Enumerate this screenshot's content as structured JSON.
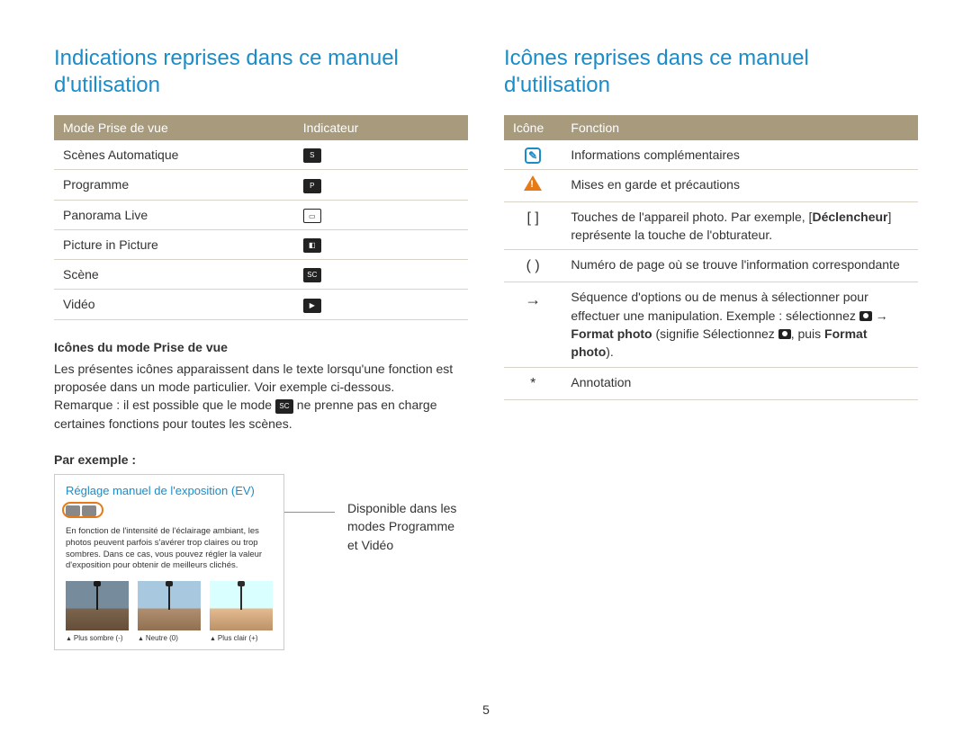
{
  "page_number": "5",
  "left": {
    "title": "Indications reprises dans ce manuel d'utilisation",
    "table_headers": [
      "Mode Prise de vue",
      "Indicateur"
    ],
    "rows": [
      {
        "mode": "Scènes Automatique",
        "icon": "SMART"
      },
      {
        "mode": "Programme",
        "icon": "P"
      },
      {
        "mode": "Panorama Live",
        "icon": "PANO"
      },
      {
        "mode": "Picture in Picture",
        "icon": "PIP"
      },
      {
        "mode": "Scène",
        "icon": "SCENE"
      },
      {
        "mode": "Vidéo",
        "icon": "VIDEO"
      }
    ],
    "subheading": "Icônes du mode Prise de vue",
    "para1": "Les présentes icônes apparaissent dans le texte lorsqu'une fonction est proposée dans un mode particulier. Voir exemple ci-dessous.",
    "para2_a": "Remarque : il est possible que le mode ",
    "para2_b": " ne prenne pas en charge certaines fonctions pour toutes les scènes.",
    "example_label": "Par exemple :",
    "example_title": "Réglage manuel de l'exposition (EV)",
    "example_desc": "En fonction de l'intensité de l'éclairage ambiant, les photos peuvent parfois s'avérer trop claires ou trop sombres. Dans ce cas, vous pouvez régler la valeur d'exposition pour obtenir de meilleurs clichés.",
    "thumbs": [
      "Plus sombre (-)",
      "Neutre (0)",
      "Plus clair (+)"
    ],
    "callout": "Disponible dans les modes Programme et Vidéo"
  },
  "right": {
    "title": "Icônes reprises dans ce manuel d'utilisation",
    "table_headers": [
      "Icône",
      "Fonction"
    ],
    "rows": [
      {
        "icon": "note",
        "text": "Informations complémentaires"
      },
      {
        "icon": "warn",
        "text": "Mises en garde et précautions"
      },
      {
        "icon": "[ ]",
        "html": "Touches de l'appareil photo. Par exemple, [<b>Déclencheur</b>] représente la touche de l'obturateur."
      },
      {
        "icon": "( )",
        "text": "Numéro de page où se trouve l'information correspondante"
      },
      {
        "icon": "→",
        "html": "Séquence d'options ou de menus à sélectionner pour effectuer une manipulation. Exemple : sélectionnez <span class=\"cam-glyph\"></span> → <b>Format photo</b> (signifie Sélectionnez <span class=\"cam-glyph\"></span>, puis <b>Format photo</b>)."
      },
      {
        "icon": "*",
        "text": "Annotation"
      }
    ]
  },
  "colors": {
    "heading": "#1a8cc8",
    "table_header_bg": "#a89b7d",
    "row_border": "#d8d4c8",
    "accent_orange": "#e67a17"
  }
}
